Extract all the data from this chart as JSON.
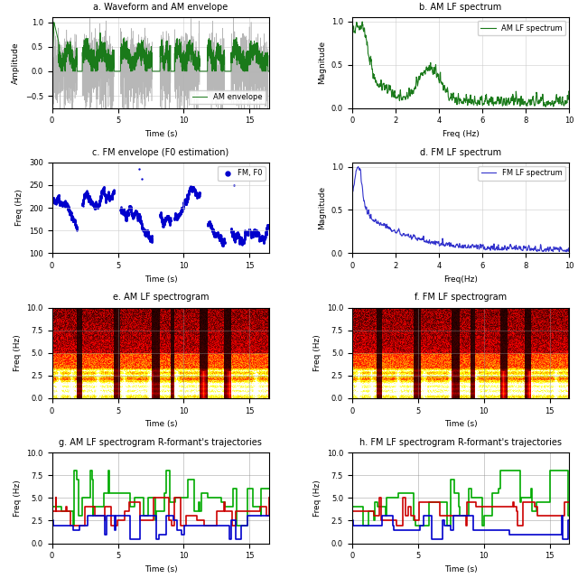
{
  "fig_width": 6.4,
  "fig_height": 6.4,
  "dpi": 100,
  "waveform_color": "#b0b0b0",
  "am_envelope_color": "#1a7a1a",
  "fm_scatter_color": "#0000cc",
  "fm_lf_color": "#3333cc",
  "am_lf_color": "#1a7a1a",
  "ridge1_color": "#0000cc",
  "ridge2_color": "#cc0000",
  "ridge3_color": "#00aa00",
  "total_time": 16.5,
  "am_ylim": [
    -0.75,
    1.1
  ],
  "fm_ylim": [
    100,
    300
  ],
  "lf_xlim": [
    0,
    10
  ],
  "lf_ylim": [
    0,
    1.05
  ],
  "spect_ylim": [
    0,
    10
  ],
  "ridge_ylim": [
    0,
    10
  ],
  "subplot_titles": [
    "a. Waveform and AM envelope",
    "b. AM LF spectrum",
    "c. FM envelope (F0 estimation)",
    "d. FM LF spectrum",
    "e. AM LF spectrogram",
    "f. FM LF spectrogram",
    "g. AM LF spectrogram R-formant's trajectories",
    "h. FM LF spectrogram R-formant's trajectories"
  ],
  "am_legend": "AM envelope",
  "fm_legend": "FM, F0",
  "am_lf_legend": "AM LF spectrum",
  "fm_lf_legend": "FM LF spectrum"
}
